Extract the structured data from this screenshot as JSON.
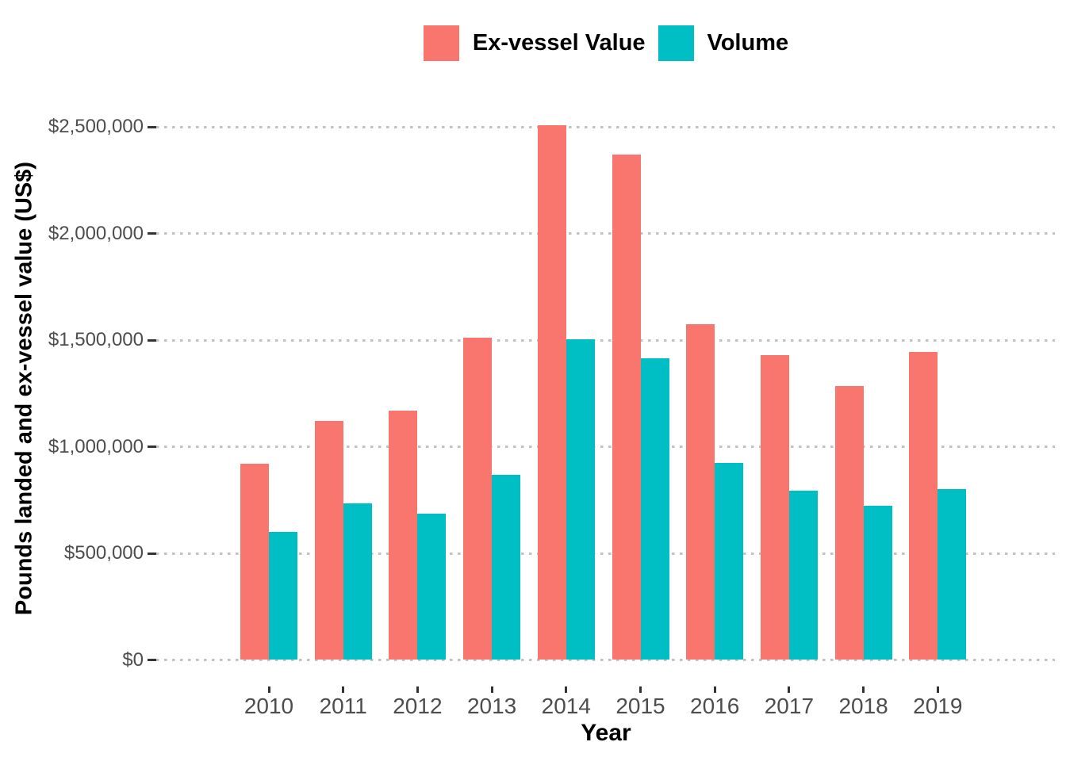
{
  "chart_data": {
    "type": "bar",
    "bar_layout": "dodged",
    "title": "",
    "xlabel": "Year",
    "ylabel": "Pounds landed and ex-vessel value (US$)",
    "categories": [
      "2010",
      "2011",
      "2012",
      "2013",
      "2014",
      "2015",
      "2016",
      "2017",
      "2018",
      "2019"
    ],
    "series": [
      {
        "name": "Ex-vessel Value",
        "color": "#F8766D",
        "values": [
          920000,
          1120000,
          1170000,
          1510000,
          2510000,
          2370000,
          1575000,
          1430000,
          1285000,
          1445000
        ]
      },
      {
        "name": "Volume",
        "color": "#00BFC4",
        "values": [
          600000,
          735000,
          685000,
          870000,
          1505000,
          1415000,
          925000,
          795000,
          725000,
          800000
        ]
      }
    ],
    "y_ticks": [
      {
        "value": 0,
        "label": "$0"
      },
      {
        "value": 500000,
        "label": "$500,000"
      },
      {
        "value": 1000000,
        "label": "$1,000,000"
      },
      {
        "value": 1500000,
        "label": "$1,500,000"
      },
      {
        "value": 2000000,
        "label": "$2,000,000"
      },
      {
        "value": 2500000,
        "label": "$2,500,000"
      }
    ],
    "ylim": [
      0,
      2650000
    ],
    "grid": "horizontal-dotted",
    "legend_position": "top-center"
  },
  "colors": {
    "ex_vessel_value": "#F8766D",
    "volume": "#00BFC4",
    "gridline": "#C2C2C2",
    "axis_text": "#4D4D4D",
    "tick_mark": "#333333",
    "title_text": "#000000",
    "background": "#FFFFFF"
  }
}
